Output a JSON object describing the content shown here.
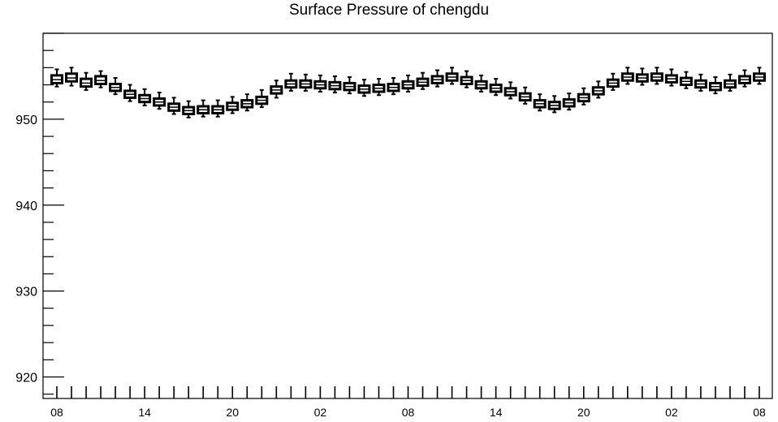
{
  "chart_data": {
    "type": "boxplot",
    "title": "Surface Pressure of chengdu",
    "xlabel": "",
    "ylabel": "",
    "ylim": [
      917.5,
      960.0
    ],
    "y_ticks": [
      920,
      930,
      940,
      950
    ],
    "x_tick_labels": [
      "08",
      "14",
      "20",
      "02",
      "08",
      "14",
      "20",
      "02",
      "08"
    ],
    "hours_per_box": 1,
    "x_range_hours": [
      0,
      48
    ],
    "boxes": [
      {
        "hour": 0,
        "median": 954.6,
        "q1": 954.2,
        "q3": 955.1,
        "min": 953.8,
        "max": 955.8
      },
      {
        "hour": 1,
        "median": 954.8,
        "q1": 954.4,
        "q3": 955.3,
        "min": 953.9,
        "max": 956.0
      },
      {
        "hour": 2,
        "median": 954.2,
        "q1": 953.8,
        "q3": 954.7,
        "min": 953.4,
        "max": 955.4
      },
      {
        "hour": 3,
        "median": 954.5,
        "q1": 954.1,
        "q3": 955.0,
        "min": 953.7,
        "max": 955.6
      },
      {
        "hour": 4,
        "median": 953.7,
        "q1": 953.3,
        "q3": 954.1,
        "min": 952.9,
        "max": 954.8
      },
      {
        "hour": 5,
        "median": 952.9,
        "q1": 952.5,
        "q3": 953.3,
        "min": 952.1,
        "max": 954.0
      },
      {
        "hour": 6,
        "median": 952.4,
        "q1": 952.0,
        "q3": 952.8,
        "min": 951.6,
        "max": 953.5
      },
      {
        "hour": 7,
        "median": 952.0,
        "q1": 951.6,
        "q3": 952.4,
        "min": 951.2,
        "max": 953.1
      },
      {
        "hour": 8,
        "median": 951.4,
        "q1": 951.0,
        "q3": 951.8,
        "min": 950.6,
        "max": 952.5
      },
      {
        "hour": 9,
        "median": 951.0,
        "q1": 950.6,
        "q3": 951.4,
        "min": 950.2,
        "max": 952.1
      },
      {
        "hour": 10,
        "median": 951.1,
        "q1": 950.7,
        "q3": 951.5,
        "min": 950.3,
        "max": 952.2
      },
      {
        "hour": 11,
        "median": 951.1,
        "q1": 950.7,
        "q3": 951.5,
        "min": 950.3,
        "max": 952.2
      },
      {
        "hour": 12,
        "median": 951.5,
        "q1": 951.1,
        "q3": 951.9,
        "min": 950.7,
        "max": 952.6
      },
      {
        "hour": 13,
        "median": 951.8,
        "q1": 951.4,
        "q3": 952.2,
        "min": 951.0,
        "max": 952.9
      },
      {
        "hour": 14,
        "median": 952.2,
        "q1": 951.8,
        "q3": 952.6,
        "min": 951.4,
        "max": 953.4
      },
      {
        "hour": 15,
        "median": 953.4,
        "q1": 953.0,
        "q3": 953.8,
        "min": 952.5,
        "max": 954.5
      },
      {
        "hour": 16,
        "median": 954.1,
        "q1": 953.7,
        "q3": 954.5,
        "min": 953.3,
        "max": 955.3
      },
      {
        "hour": 17,
        "median": 954.1,
        "q1": 953.7,
        "q3": 954.5,
        "min": 953.3,
        "max": 955.2
      },
      {
        "hour": 18,
        "median": 954.0,
        "q1": 953.6,
        "q3": 954.4,
        "min": 953.2,
        "max": 955.1
      },
      {
        "hour": 19,
        "median": 953.9,
        "q1": 953.5,
        "q3": 954.3,
        "min": 953.1,
        "max": 955.0
      },
      {
        "hour": 20,
        "median": 953.8,
        "q1": 953.4,
        "q3": 954.2,
        "min": 953.0,
        "max": 954.9
      },
      {
        "hour": 21,
        "median": 953.5,
        "q1": 953.1,
        "q3": 953.9,
        "min": 952.7,
        "max": 954.6
      },
      {
        "hour": 22,
        "median": 953.6,
        "q1": 953.2,
        "q3": 954.0,
        "min": 952.8,
        "max": 954.7
      },
      {
        "hour": 23,
        "median": 953.7,
        "q1": 953.3,
        "q3": 954.1,
        "min": 952.9,
        "max": 954.8
      },
      {
        "hour": 24,
        "median": 954.0,
        "q1": 953.6,
        "q3": 954.4,
        "min": 953.2,
        "max": 955.1
      },
      {
        "hour": 25,
        "median": 954.3,
        "q1": 953.9,
        "q3": 954.7,
        "min": 953.5,
        "max": 955.4
      },
      {
        "hour": 26,
        "median": 954.6,
        "q1": 954.2,
        "q3": 955.0,
        "min": 953.8,
        "max": 955.7
      },
      {
        "hour": 27,
        "median": 954.9,
        "q1": 954.5,
        "q3": 955.3,
        "min": 954.1,
        "max": 956.0
      },
      {
        "hour": 28,
        "median": 954.5,
        "q1": 954.1,
        "q3": 954.9,
        "min": 953.7,
        "max": 955.6
      },
      {
        "hour": 29,
        "median": 954.0,
        "q1": 953.6,
        "q3": 954.4,
        "min": 953.2,
        "max": 955.1
      },
      {
        "hour": 30,
        "median": 953.6,
        "q1": 953.2,
        "q3": 954.0,
        "min": 952.8,
        "max": 954.7
      },
      {
        "hour": 31,
        "median": 953.2,
        "q1": 952.8,
        "q3": 953.6,
        "min": 952.4,
        "max": 954.3
      },
      {
        "hour": 32,
        "median": 952.6,
        "q1": 952.2,
        "q3": 953.0,
        "min": 951.8,
        "max": 953.7
      },
      {
        "hour": 33,
        "median": 951.8,
        "q1": 951.4,
        "q3": 952.2,
        "min": 951.0,
        "max": 952.9
      },
      {
        "hour": 34,
        "median": 951.6,
        "q1": 951.2,
        "q3": 952.0,
        "min": 950.8,
        "max": 952.7
      },
      {
        "hour": 35,
        "median": 951.9,
        "q1": 951.5,
        "q3": 952.3,
        "min": 951.1,
        "max": 953.0
      },
      {
        "hour": 36,
        "median": 952.5,
        "q1": 952.1,
        "q3": 952.9,
        "min": 951.7,
        "max": 953.6
      },
      {
        "hour": 37,
        "median": 953.3,
        "q1": 952.9,
        "q3": 953.7,
        "min": 952.5,
        "max": 954.4
      },
      {
        "hour": 38,
        "median": 954.2,
        "q1": 953.8,
        "q3": 954.6,
        "min": 953.4,
        "max": 955.3
      },
      {
        "hour": 39,
        "median": 954.9,
        "q1": 954.5,
        "q3": 955.3,
        "min": 954.1,
        "max": 956.0
      },
      {
        "hour": 40,
        "median": 954.8,
        "q1": 954.4,
        "q3": 955.2,
        "min": 954.0,
        "max": 955.9
      },
      {
        "hour": 41,
        "median": 954.9,
        "q1": 954.5,
        "q3": 955.3,
        "min": 954.1,
        "max": 956.0
      },
      {
        "hour": 42,
        "median": 954.7,
        "q1": 954.3,
        "q3": 955.1,
        "min": 953.9,
        "max": 955.8
      },
      {
        "hour": 43,
        "median": 954.4,
        "q1": 954.0,
        "q3": 954.8,
        "min": 953.6,
        "max": 955.5
      },
      {
        "hour": 44,
        "median": 954.1,
        "q1": 953.7,
        "q3": 954.5,
        "min": 953.3,
        "max": 955.2
      },
      {
        "hour": 45,
        "median": 953.8,
        "q1": 953.4,
        "q3": 954.2,
        "min": 953.0,
        "max": 954.9
      },
      {
        "hour": 46,
        "median": 954.1,
        "q1": 953.7,
        "q3": 954.5,
        "min": 953.3,
        "max": 955.2
      },
      {
        "hour": 47,
        "median": 954.6,
        "q1": 954.2,
        "q3": 955.0,
        "min": 953.8,
        "max": 955.7
      },
      {
        "hour": 48,
        "median": 954.9,
        "q1": 954.5,
        "q3": 955.3,
        "min": 954.1,
        "max": 956.0
      }
    ],
    "grid": false,
    "legend": "none",
    "colors": {
      "box_fill": "#ffffff",
      "stroke": "#000000",
      "background": "#ffffff"
    }
  }
}
